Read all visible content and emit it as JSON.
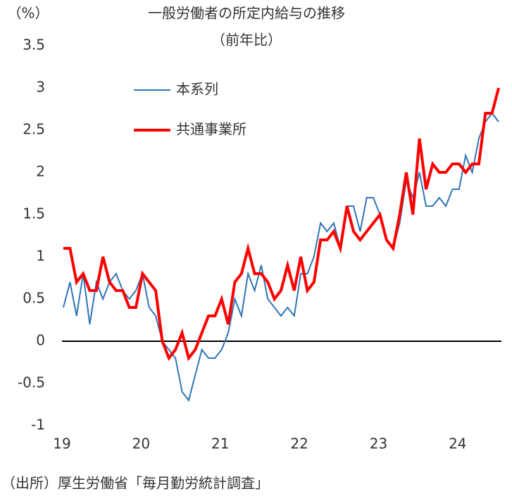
{
  "chart_data": {
    "type": "line",
    "title": "一般労働者の所定内給与の推移",
    "subtitle": "（前年比）",
    "y_label": "（%）",
    "source": "（出所）厚生労働省「毎月勤労統計調査」",
    "categories": [
      "19",
      null,
      null,
      null,
      null,
      null,
      null,
      null,
      null,
      null,
      null,
      null,
      "20",
      null,
      null,
      null,
      null,
      null,
      null,
      null,
      null,
      null,
      null,
      null,
      "21",
      null,
      null,
      null,
      null,
      null,
      null,
      null,
      null,
      null,
      null,
      null,
      "22",
      null,
      null,
      null,
      null,
      null,
      null,
      null,
      null,
      null,
      null,
      null,
      "23",
      null,
      null,
      null,
      null,
      null,
      null,
      null,
      null,
      null,
      null,
      null,
      "24",
      null,
      null,
      null,
      null,
      null,
      null
    ],
    "series": [
      {
        "name": "本系列",
        "color": "#2e75b6",
        "width": 2,
        "values": [
          0.4,
          0.7,
          0.3,
          0.8,
          0.2,
          0.7,
          0.5,
          0.7,
          0.8,
          0.6,
          0.5,
          0.6,
          0.8,
          0.4,
          0.3,
          0.0,
          -0.1,
          -0.2,
          -0.6,
          -0.7,
          -0.4,
          -0.1,
          -0.2,
          -0.2,
          -0.1,
          0.1,
          0.5,
          0.3,
          0.8,
          0.6,
          0.9,
          0.5,
          0.4,
          0.3,
          0.4,
          0.3,
          0.8,
          0.8,
          1.0,
          1.4,
          1.3,
          1.4,
          1.1,
          1.6,
          1.6,
          1.3,
          1.7,
          1.7,
          1.5,
          1.2,
          1.1,
          1.4,
          1.9,
          1.7,
          2.0,
          1.6,
          1.6,
          1.7,
          1.6,
          1.8,
          1.8,
          2.2,
          2.0,
          2.4,
          2.6,
          2.7,
          2.6
        ]
      },
      {
        "name": "共通事業所",
        "color": "#ff0000",
        "width": 4,
        "values": [
          1.1,
          1.1,
          0.7,
          0.8,
          0.6,
          0.6,
          1.0,
          0.7,
          0.6,
          0.6,
          0.4,
          0.4,
          0.8,
          0.7,
          0.6,
          0.0,
          -0.2,
          -0.1,
          0.1,
          -0.2,
          -0.1,
          0.1,
          0.3,
          0.3,
          0.5,
          0.2,
          0.7,
          0.8,
          1.1,
          0.8,
          0.8,
          0.7,
          0.5,
          0.6,
          0.9,
          0.6,
          1.0,
          0.6,
          0.7,
          1.2,
          1.2,
          1.3,
          1.1,
          1.6,
          1.3,
          1.2,
          1.3,
          1.4,
          1.5,
          1.2,
          1.1,
          1.5,
          2.0,
          1.5,
          2.4,
          1.8,
          2.1,
          2.0,
          2.0,
          2.1,
          2.1,
          2.0,
          2.1,
          2.1,
          2.7,
          2.7,
          3.0
        ]
      }
    ],
    "ylim": [
      -1,
      3.5
    ],
    "yticks": [
      -1,
      -0.5,
      0,
      0.5,
      1,
      1.5,
      2,
      2.5,
      3,
      3.5
    ],
    "grid": false
  }
}
